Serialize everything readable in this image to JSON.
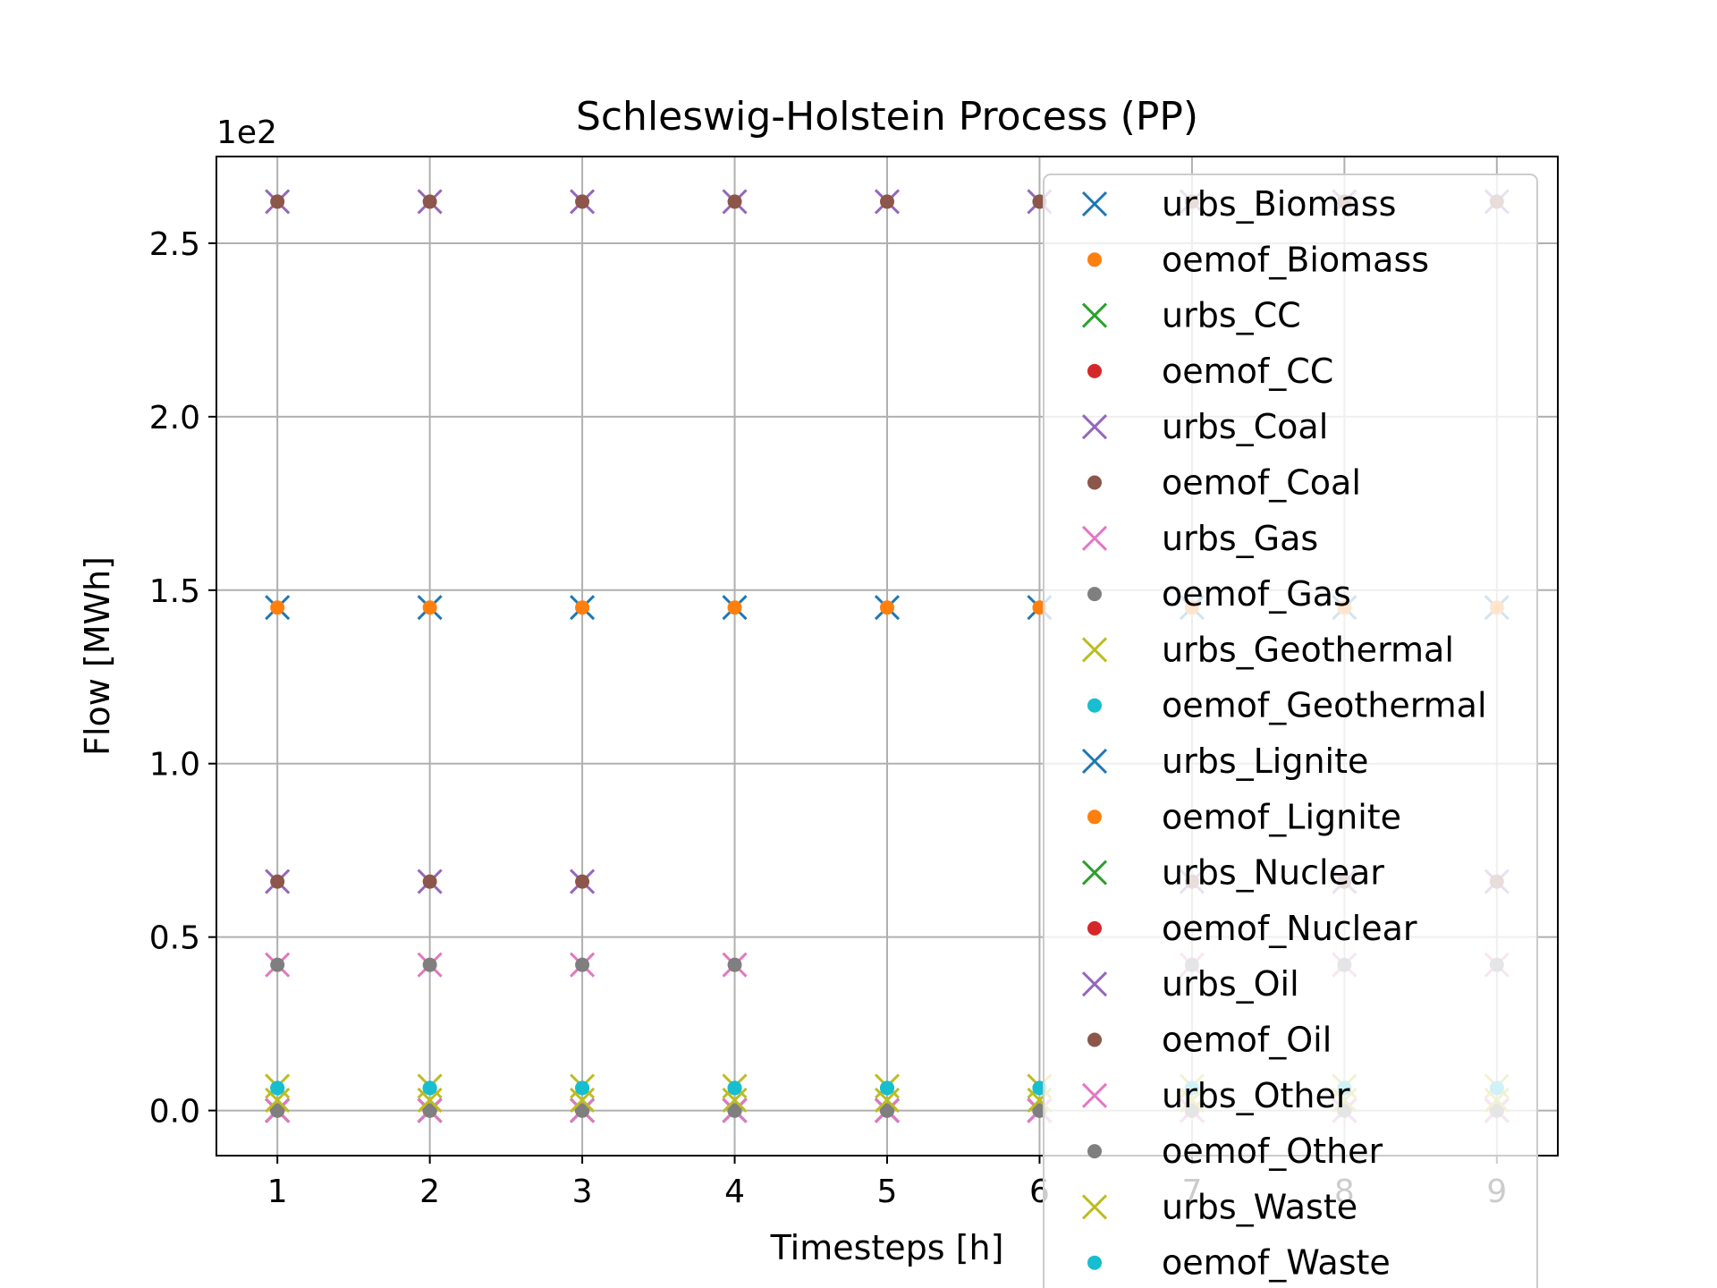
{
  "chart_data": {
    "type": "scatter",
    "title": "Schleswig-Holstein Process (PP)",
    "xlabel": "Timesteps [h]",
    "ylabel": "Flow [MWh]",
    "y_scale_label": "1e2",
    "xlim": [
      0.6,
      9.4
    ],
    "ylim": [
      -0.13,
      2.75
    ],
    "x_ticks": [
      1,
      2,
      3,
      4,
      5,
      6,
      7,
      8,
      9
    ],
    "y_ticks": [
      0.0,
      0.5,
      1.0,
      1.5,
      2.0,
      2.5
    ],
    "y_tick_labels": [
      "0.0",
      "0.5",
      "1.0",
      "1.5",
      "2.0",
      "2.5"
    ],
    "grid": true,
    "legend_position": "right",
    "x": [
      1,
      2,
      3,
      4,
      5,
      6,
      7,
      8,
      9
    ],
    "series": [
      {
        "name": "urbs_Biomass",
        "marker": "x",
        "color": "#1f77b4",
        "values": [
          1.45,
          1.45,
          1.45,
          1.45,
          1.45,
          1.45,
          1.45,
          1.45,
          1.45
        ]
      },
      {
        "name": "oemof_Biomass",
        "marker": "dot",
        "color": "#ff7f0e",
        "values": [
          1.45,
          1.45,
          1.45,
          1.45,
          1.45,
          1.45,
          1.45,
          1.45,
          1.45
        ]
      },
      {
        "name": "urbs_CC",
        "marker": "x",
        "color": "#2ca02c",
        "values": [
          0,
          0,
          0,
          0,
          0,
          0,
          0,
          0,
          0
        ]
      },
      {
        "name": "oemof_CC",
        "marker": "dot",
        "color": "#d62728",
        "values": [
          0,
          0,
          0,
          0,
          0,
          0,
          0,
          0,
          0
        ]
      },
      {
        "name": "urbs_Coal",
        "marker": "x",
        "color": "#9467bd",
        "values": [
          2.62,
          2.62,
          2.62,
          2.62,
          2.62,
          2.62,
          2.62,
          2.62,
          2.62
        ]
      },
      {
        "name": "oemof_Coal",
        "marker": "dot",
        "color": "#8c564b",
        "values": [
          2.62,
          2.62,
          2.62,
          2.62,
          2.62,
          2.62,
          2.62,
          2.62,
          2.62
        ]
      },
      {
        "name": "urbs_Gas",
        "marker": "x",
        "color": "#e377c2",
        "values": [
          0.42,
          0.42,
          0.42,
          0.42,
          0,
          0,
          0.42,
          0.42,
          0.42
        ]
      },
      {
        "name": "oemof_Gas",
        "marker": "dot",
        "color": "#7f7f7f",
        "values": [
          0.42,
          0.42,
          0.42,
          0.42,
          0,
          0,
          0.42,
          0.42,
          0.42
        ]
      },
      {
        "name": "urbs_Geothermal",
        "marker": "x",
        "color": "#bcbd22",
        "values": [
          0.07,
          0.07,
          0.07,
          0.07,
          0.07,
          0.07,
          0.07,
          0.07,
          0.07
        ]
      },
      {
        "name": "oemof_Geothermal",
        "marker": "dot",
        "color": "#17becf",
        "values": [
          0.065,
          0.065,
          0.065,
          0.065,
          0.065,
          0.065,
          0.065,
          0.065,
          0.065
        ]
      },
      {
        "name": "urbs_Lignite",
        "marker": "x",
        "color": "#1f77b4",
        "values": [
          0,
          0,
          0,
          0,
          0,
          0,
          0,
          0,
          0
        ]
      },
      {
        "name": "oemof_Lignite",
        "marker": "dot",
        "color": "#ff7f0e",
        "values": [
          0,
          0,
          0,
          0,
          0,
          0,
          0,
          0,
          0
        ]
      },
      {
        "name": "urbs_Nuclear",
        "marker": "x",
        "color": "#2ca02c",
        "values": [
          0,
          0,
          0,
          0,
          0,
          0,
          0,
          0,
          0
        ]
      },
      {
        "name": "oemof_Nuclear",
        "marker": "dot",
        "color": "#d62728",
        "values": [
          0,
          0,
          0,
          0,
          0,
          0,
          0,
          0,
          0
        ]
      },
      {
        "name": "urbs_Oil",
        "marker": "x",
        "color": "#9467bd",
        "values": [
          0.66,
          0.66,
          0.66,
          0,
          0,
          0,
          0.66,
          0.66,
          0.66
        ]
      },
      {
        "name": "oemof_Oil",
        "marker": "dot",
        "color": "#8c564b",
        "values": [
          0.66,
          0.66,
          0.66,
          0,
          0,
          0,
          0.66,
          0.66,
          0.66
        ]
      },
      {
        "name": "urbs_Other",
        "marker": "x",
        "color": "#e377c2",
        "values": [
          0,
          0,
          0,
          0,
          0,
          0,
          0,
          0,
          0
        ]
      },
      {
        "name": "oemof_Other",
        "marker": "dot",
        "color": "#7f7f7f",
        "values": [
          0,
          0,
          0,
          0,
          0,
          0,
          0,
          0,
          0
        ]
      },
      {
        "name": "urbs_Waste",
        "marker": "x",
        "color": "#bcbd22",
        "values": [
          0.03,
          0.03,
          0.03,
          0.03,
          0.03,
          0.03,
          0.03,
          0.03,
          0.03
        ]
      },
      {
        "name": "oemof_Waste",
        "marker": "dot",
        "color": "#17becf",
        "values": [
          0.065,
          0.065,
          0.065,
          0.065,
          0.065,
          0.065,
          0.065,
          0.065,
          0.065
        ]
      }
    ]
  }
}
